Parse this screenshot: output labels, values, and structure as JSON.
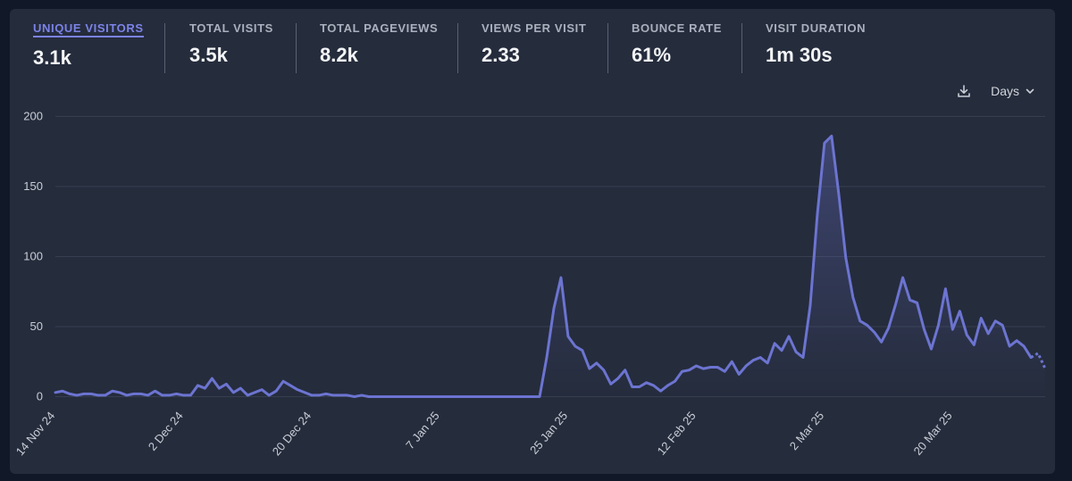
{
  "stats": [
    {
      "label": "UNIQUE VISITORS",
      "value": "3.1k",
      "active": true
    },
    {
      "label": "TOTAL VISITS",
      "value": "3.5k",
      "active": false
    },
    {
      "label": "TOTAL PAGEVIEWS",
      "value": "8.2k",
      "active": false
    },
    {
      "label": "VIEWS PER VISIT",
      "value": "2.33",
      "active": false
    },
    {
      "label": "BOUNCE RATE",
      "value": "61%",
      "active": false
    },
    {
      "label": "VISIT DURATION",
      "value": "1m 30s",
      "active": false
    }
  ],
  "controls": {
    "interval_label": "Days",
    "download_icon": "download-icon",
    "chevron_icon": "chevron-down-icon"
  },
  "colors": {
    "accent": "#6c74d1",
    "grid": "#363e50",
    "text": "#c9cdd6"
  },
  "chart_data": {
    "type": "line",
    "title": "",
    "xlabel": "",
    "ylabel": "",
    "ylim": [
      0,
      200
    ],
    "yticks": [
      0,
      50,
      100,
      150,
      200
    ],
    "xticks": [
      {
        "label": "14 Nov 24",
        "index": 0
      },
      {
        "label": "2 Dec 24",
        "index": 18
      },
      {
        "label": "20 Dec 24",
        "index": 36
      },
      {
        "label": "7 Jan 25",
        "index": 54
      },
      {
        "label": "25 Jan 25",
        "index": 72
      },
      {
        "label": "12 Feb 25",
        "index": 90
      },
      {
        "label": "2 Mar 25",
        "index": 108
      },
      {
        "label": "20 Mar 25",
        "index": 126
      }
    ],
    "grid": "horizontal",
    "dashed_tail_points": 2,
    "series": [
      {
        "name": "",
        "values": [
          3,
          4,
          2,
          1,
          2,
          2,
          1,
          1,
          4,
          3,
          1,
          2,
          2,
          1,
          4,
          1,
          1,
          2,
          1,
          1,
          8,
          6,
          13,
          6,
          9,
          3,
          6,
          1,
          3,
          5,
          1,
          4,
          11,
          8,
          5,
          3,
          1,
          1,
          2,
          1,
          1,
          1,
          0,
          1,
          0,
          0,
          0,
          0,
          0,
          0,
          0,
          0,
          0,
          0,
          0,
          0,
          0,
          0,
          0,
          0,
          0,
          0,
          0,
          0,
          0,
          0,
          0,
          0,
          0,
          28,
          63,
          85,
          43,
          36,
          33,
          20,
          24,
          19,
          9,
          13,
          19,
          7,
          7,
          10,
          8,
          4,
          8,
          11,
          18,
          19,
          22,
          20,
          21,
          21,
          18,
          25,
          16,
          22,
          26,
          28,
          24,
          38,
          33,
          43,
          32,
          28,
          65,
          130,
          181,
          186,
          145,
          99,
          71,
          54,
          51,
          46,
          39,
          49,
          66,
          85,
          69,
          67,
          48,
          34,
          51,
          77,
          48,
          61,
          44,
          37,
          56,
          45,
          54,
          51,
          36,
          40,
          36,
          28,
          31,
          20
        ]
      }
    ]
  }
}
